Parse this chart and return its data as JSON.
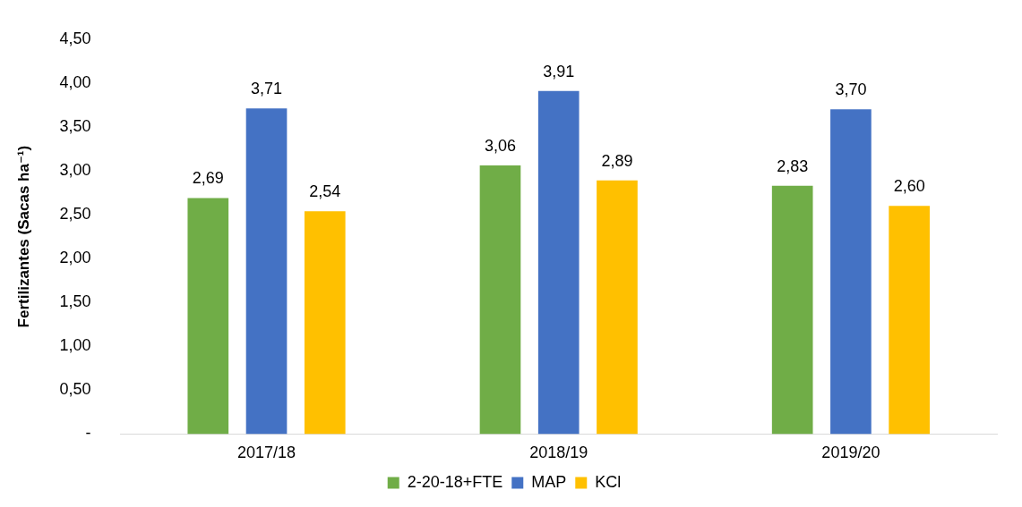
{
  "chart_data": {
    "type": "bar",
    "ylabel": "Fertilizantes (Sacas ha⁻¹)",
    "categories": [
      "2017/18",
      "2018/19",
      "2019/20"
    ],
    "series": [
      {
        "name": "2-20-18+FTE",
        "color": "#70ad47",
        "values": [
          2.69,
          3.06,
          2.83
        ],
        "value_labels": [
          "2,69",
          "3,06",
          "2,83"
        ]
      },
      {
        "name": "MAP",
        "color": "#4472c4",
        "values": [
          3.71,
          3.91,
          3.7
        ],
        "value_labels": [
          "3,71",
          "3,91",
          "3,70"
        ]
      },
      {
        "name": "KCl",
        "color": "#ffc000",
        "values": [
          2.54,
          2.89,
          2.6
        ],
        "value_labels": [
          "2,54",
          "2,89",
          "2,60"
        ]
      }
    ],
    "ylim": [
      0,
      4.5
    ],
    "yticks": [
      {
        "value": 0,
        "label": "-"
      },
      {
        "value": 0.5,
        "label": "0,50"
      },
      {
        "value": 1,
        "label": "1,00"
      },
      {
        "value": 1.5,
        "label": "1,50"
      },
      {
        "value": 2,
        "label": "2,00"
      },
      {
        "value": 2.5,
        "label": "2,50"
      },
      {
        "value": 3,
        "label": "3,00"
      },
      {
        "value": 3.5,
        "label": "3,50"
      },
      {
        "value": 4,
        "label": "4,00"
      },
      {
        "value": 4.5,
        "label": "4,50"
      }
    ],
    "grid": false,
    "legend": "bottom"
  }
}
